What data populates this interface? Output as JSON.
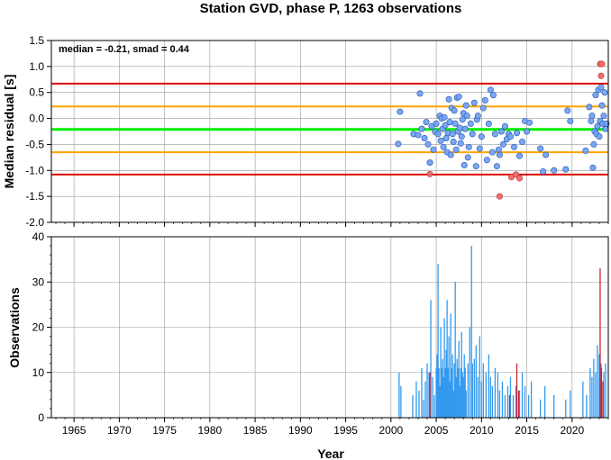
{
  "chart_data": {
    "title": "Station GVD, phase P, 1263 observations",
    "annotation": "median = -0.21, smad = 0.44",
    "xlabel": "Year",
    "x_ticks": [
      1965,
      1970,
      1975,
      1980,
      1985,
      1990,
      1995,
      2000,
      2005,
      2010,
      2015,
      2020
    ],
    "xlim": [
      1962.5,
      2024.0
    ],
    "colors": {
      "normal_point": "#7aa6f5",
      "outlier_point": "#f07070",
      "median_line": "#00ee00",
      "inner_band": "#ffa500",
      "outer_band": "#dd0000",
      "bar_normal": "#3399ee",
      "bar_outlier": "#cc2233",
      "grid": "#999999"
    },
    "residual_panel": {
      "type": "scatter",
      "ylabel": "Median residual [s]",
      "ylim": [
        -2.0,
        1.5
      ],
      "y_ticks": [
        "1.5",
        "1.0",
        "0.5",
        "0.0",
        "-0.5",
        "-1.0",
        "-1.5",
        "-2.0"
      ],
      "median": -0.21,
      "inner_band": [
        -0.65,
        0.23
      ],
      "outer_band": [
        -1.08,
        0.67
      ],
      "points": [
        [
          2000.8,
          -0.49
        ],
        [
          2001.0,
          0.13
        ],
        [
          2002.5,
          -0.3
        ],
        [
          2003.0,
          -0.32
        ],
        [
          2003.2,
          0.48
        ],
        [
          2003.4,
          -0.2
        ],
        [
          2003.7,
          -0.38
        ],
        [
          2003.9,
          -0.07
        ],
        [
          2004.1,
          -0.5
        ],
        [
          2004.3,
          -0.85
        ],
        [
          2004.5,
          -0.15
        ],
        [
          2004.7,
          -0.6
        ],
        [
          2004.9,
          -0.26
        ],
        [
          2005.0,
          -0.1
        ],
        [
          2005.2,
          -0.3
        ],
        [
          2005.4,
          0.05
        ],
        [
          2005.5,
          -0.43
        ],
        [
          2005.6,
          0.0
        ],
        [
          2005.7,
          -0.2
        ],
        [
          2005.8,
          -0.55
        ],
        [
          2005.9,
          0.02
        ],
        [
          2006.0,
          -0.13
        ],
        [
          2006.1,
          -0.38
        ],
        [
          2006.2,
          -0.65
        ],
        [
          2006.3,
          -0.28
        ],
        [
          2006.4,
          0.37
        ],
        [
          2006.5,
          -0.07
        ],
        [
          2006.6,
          -0.7
        ],
        [
          2006.7,
          0.2
        ],
        [
          2006.8,
          -0.3
        ],
        [
          2006.9,
          -0.45
        ],
        [
          2007.0,
          0.15
        ],
        [
          2007.1,
          -0.1
        ],
        [
          2007.2,
          -0.6
        ],
        [
          2007.3,
          0.4
        ],
        [
          2007.4,
          -0.25
        ],
        [
          2007.5,
          0.42
        ],
        [
          2007.6,
          -0.18
        ],
        [
          2007.7,
          -0.48
        ],
        [
          2007.8,
          -0.35
        ],
        [
          2007.9,
          -0.02
        ],
        [
          2008.0,
          0.1
        ],
        [
          2008.1,
          -0.9
        ],
        [
          2008.2,
          -0.2
        ],
        [
          2008.3,
          0.25
        ],
        [
          2008.4,
          0.05
        ],
        [
          2008.5,
          -0.75
        ],
        [
          2008.6,
          -0.55
        ],
        [
          2008.8,
          -0.1
        ],
        [
          2009.0,
          -0.3
        ],
        [
          2009.2,
          0.3
        ],
        [
          2009.4,
          -0.92
        ],
        [
          2009.5,
          -0.02
        ],
        [
          2009.6,
          0.05
        ],
        [
          2009.8,
          -0.58
        ],
        [
          2010.0,
          -0.35
        ],
        [
          2010.2,
          0.2
        ],
        [
          2010.4,
          0.35
        ],
        [
          2010.6,
          -0.8
        ],
        [
          2010.8,
          -0.1
        ],
        [
          2011.0,
          0.55
        ],
        [
          2011.2,
          -0.65
        ],
        [
          2011.3,
          0.45
        ],
        [
          2011.5,
          -0.3
        ],
        [
          2011.7,
          -0.92
        ],
        [
          2011.9,
          -0.6
        ],
        [
          2012.0,
          -0.7
        ],
        [
          2012.2,
          -0.25
        ],
        [
          2012.4,
          -0.5
        ],
        [
          2012.6,
          -0.15
        ],
        [
          2012.8,
          -0.4
        ],
        [
          2013.0,
          -0.3
        ],
        [
          2013.2,
          -0.35
        ],
        [
          2013.6,
          -0.55
        ],
        [
          2013.9,
          -0.28
        ],
        [
          2014.2,
          -0.72
        ],
        [
          2014.5,
          -0.45
        ],
        [
          2014.8,
          -0.05
        ],
        [
          2015.0,
          -0.25
        ],
        [
          2015.3,
          -0.08
        ],
        [
          2016.5,
          -0.58
        ],
        [
          2016.8,
          -1.02
        ],
        [
          2017.1,
          -0.7
        ],
        [
          2018.0,
          -1.0
        ],
        [
          2019.3,
          -0.98
        ],
        [
          2019.5,
          0.15
        ],
        [
          2019.8,
          -0.05
        ],
        [
          2021.5,
          -0.62
        ],
        [
          2021.9,
          0.22
        ],
        [
          2022.1,
          -0.05
        ],
        [
          2022.2,
          0.05
        ],
        [
          2022.3,
          -0.95
        ],
        [
          2022.4,
          -0.5
        ],
        [
          2022.5,
          -0.25
        ],
        [
          2022.6,
          0.45
        ],
        [
          2022.7,
          -0.3
        ],
        [
          2022.8,
          -0.15
        ],
        [
          2022.9,
          0.55
        ],
        [
          2023.0,
          -0.35
        ],
        [
          2023.1,
          -0.05
        ],
        [
          2023.2,
          0.6
        ],
        [
          2023.3,
          0.25
        ],
        [
          2023.4,
          -0.1
        ],
        [
          2023.5,
          0.05
        ],
        [
          2023.6,
          0.5
        ],
        [
          2023.7,
          -0.2
        ],
        [
          2023.8,
          -0.1
        ]
      ],
      "outliers": [
        [
          2004.3,
          -1.07
        ],
        [
          2012.0,
          -1.5
        ],
        [
          2013.3,
          -1.13
        ],
        [
          2013.8,
          -1.08
        ],
        [
          2014.2,
          -1.15
        ],
        [
          2023.1,
          1.05
        ],
        [
          2023.3,
          1.05
        ],
        [
          2023.2,
          0.82
        ]
      ]
    },
    "count_panel": {
      "type": "bar",
      "ylabel": "Observations",
      "ylim": [
        0,
        40
      ],
      "y_ticks": [
        "40",
        "30",
        "20",
        "10",
        "0"
      ],
      "bars": [
        [
          2000.9,
          10
        ],
        [
          2001.1,
          7
        ],
        [
          2002.4,
          5
        ],
        [
          2002.8,
          8
        ],
        [
          2003.1,
          6
        ],
        [
          2003.4,
          11
        ],
        [
          2003.6,
          4
        ],
        [
          2003.8,
          8
        ],
        [
          2004.0,
          12
        ],
        [
          2004.2,
          10
        ],
        [
          2004.4,
          26
        ],
        [
          2004.6,
          9
        ],
        [
          2004.8,
          5
        ],
        [
          2005.0,
          11
        ],
        [
          2005.1,
          14
        ],
        [
          2005.2,
          34
        ],
        [
          2005.3,
          11
        ],
        [
          2005.4,
          7
        ],
        [
          2005.5,
          20
        ],
        [
          2005.6,
          11
        ],
        [
          2005.7,
          13
        ],
        [
          2005.8,
          9
        ],
        [
          2005.9,
          22
        ],
        [
          2006.0,
          11
        ],
        [
          2006.1,
          15
        ],
        [
          2006.2,
          26
        ],
        [
          2006.3,
          11
        ],
        [
          2006.4,
          18
        ],
        [
          2006.5,
          8
        ],
        [
          2006.6,
          23
        ],
        [
          2006.7,
          11
        ],
        [
          2006.8,
          14
        ],
        [
          2006.9,
          6
        ],
        [
          2007.0,
          12
        ],
        [
          2007.1,
          30
        ],
        [
          2007.2,
          9
        ],
        [
          2007.3,
          13
        ],
        [
          2007.4,
          11
        ],
        [
          2007.5,
          17
        ],
        [
          2007.6,
          7
        ],
        [
          2007.7,
          11
        ],
        [
          2007.8,
          19
        ],
        [
          2007.9,
          10
        ],
        [
          2008.0,
          9
        ],
        [
          2008.1,
          14
        ],
        [
          2008.2,
          11
        ],
        [
          2008.3,
          6
        ],
        [
          2008.5,
          12
        ],
        [
          2008.7,
          20
        ],
        [
          2008.9,
          38
        ],
        [
          2009.0,
          12
        ],
        [
          2009.2,
          13
        ],
        [
          2009.4,
          16
        ],
        [
          2009.6,
          9
        ],
        [
          2009.8,
          18
        ],
        [
          2010.0,
          8
        ],
        [
          2010.2,
          12
        ],
        [
          2010.5,
          10
        ],
        [
          2010.8,
          14
        ],
        [
          2011.0,
          9
        ],
        [
          2011.2,
          7
        ],
        [
          2011.5,
          11
        ],
        [
          2011.8,
          10
        ],
        [
          2012.0,
          6
        ],
        [
          2012.3,
          8
        ],
        [
          2012.6,
          5
        ],
        [
          2012.9,
          7
        ],
        [
          2013.2,
          9
        ],
        [
          2013.5,
          5
        ],
        [
          2013.8,
          7
        ],
        [
          2014.2,
          6
        ],
        [
          2014.5,
          10
        ],
        [
          2014.8,
          7
        ],
        [
          2015.2,
          5
        ],
        [
          2015.5,
          8
        ],
        [
          2016.5,
          4
        ],
        [
          2017.0,
          7
        ],
        [
          2018.0,
          5
        ],
        [
          2019.3,
          4
        ],
        [
          2019.8,
          6
        ],
        [
          2021.2,
          8
        ],
        [
          2021.6,
          5
        ],
        [
          2022.0,
          11
        ],
        [
          2022.2,
          9
        ],
        [
          2022.4,
          13
        ],
        [
          2022.6,
          10
        ],
        [
          2022.8,
          16
        ],
        [
          2023.0,
          14
        ],
        [
          2023.2,
          12
        ],
        [
          2023.5,
          10
        ],
        [
          2023.7,
          12
        ]
      ],
      "outlier_bars": [
        [
          2004.3,
          10
        ],
        [
          2013.1,
          5
        ],
        [
          2013.9,
          12
        ],
        [
          2014.1,
          6
        ],
        [
          2023.1,
          33
        ],
        [
          2023.25,
          11
        ],
        [
          2023.4,
          8
        ]
      ]
    }
  }
}
